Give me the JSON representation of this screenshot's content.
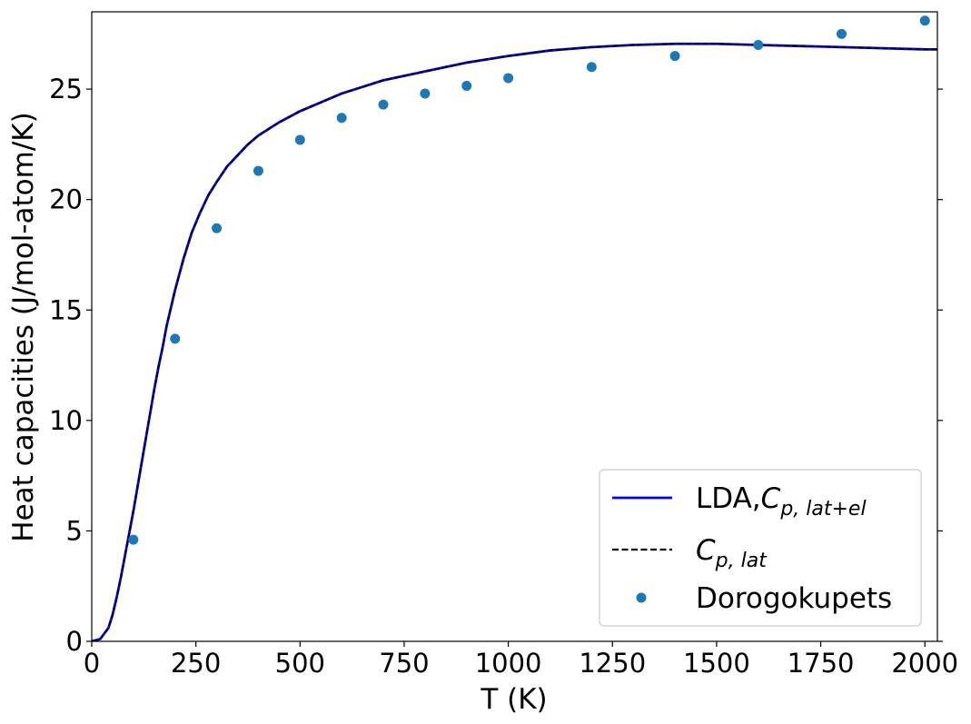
{
  "chart_data": {
    "type": "line",
    "title": "",
    "xlabel": "T (K)",
    "ylabel": "Heat capacities (J/mol-atom/K)",
    "xlim": [
      0,
      2030
    ],
    "ylim": [
      0,
      28.5
    ],
    "xticks": [
      0,
      250,
      500,
      750,
      1000,
      1250,
      1500,
      1750,
      2000
    ],
    "yticks": [
      0,
      5,
      10,
      15,
      20,
      25
    ],
    "grid": false,
    "legend_position": "lower-right",
    "series": [
      {
        "name": "LDA,",
        "name_math": "C",
        "name_sub": "p, lat+el",
        "style": "solid",
        "color": "#0000ff",
        "x": [
          0,
          20,
          40,
          50,
          60,
          70,
          80,
          90,
          100,
          110,
          120,
          130,
          140,
          150,
          160,
          170,
          180,
          190,
          200,
          220,
          240,
          260,
          280,
          300,
          325,
          350,
          375,
          400,
          450,
          500,
          550,
          600,
          650,
          700,
          750,
          800,
          850,
          900,
          950,
          1000,
          1100,
          1200,
          1300,
          1400,
          1500,
          1600,
          1700,
          1800,
          1900,
          2000,
          2030
        ],
        "y": [
          0,
          0.1,
          0.6,
          1.2,
          2.0,
          2.9,
          3.9,
          4.9,
          5.9,
          7.0,
          8.1,
          9.2,
          10.3,
          11.4,
          12.4,
          13.3,
          14.3,
          15.1,
          15.9,
          17.3,
          18.5,
          19.4,
          20.2,
          20.8,
          21.5,
          22.0,
          22.5,
          22.9,
          23.5,
          24.0,
          24.4,
          24.8,
          25.1,
          25.4,
          25.6,
          25.8,
          26.0,
          26.2,
          26.35,
          26.5,
          26.75,
          26.9,
          27.0,
          27.05,
          27.05,
          27.0,
          26.95,
          26.9,
          26.85,
          26.8,
          26.8
        ]
      },
      {
        "name": "",
        "name_math": "C",
        "name_sub": "p, lat",
        "style": "dashed",
        "color": "#000000",
        "x": [
          0,
          20,
          40,
          50,
          60,
          70,
          80,
          90,
          100,
          110,
          120,
          130,
          140,
          150,
          160,
          170,
          180,
          190,
          200,
          220,
          240,
          260,
          280,
          300,
          325,
          350,
          375,
          400,
          450,
          500,
          550,
          600,
          650,
          700,
          750,
          800,
          850,
          900,
          950,
          1000,
          1100,
          1200,
          1300,
          1400,
          1500,
          1600,
          1700,
          1800,
          1900,
          2000,
          2030
        ],
        "y": [
          0,
          0.1,
          0.6,
          1.2,
          2.0,
          2.9,
          3.9,
          4.9,
          5.9,
          7.0,
          8.1,
          9.2,
          10.3,
          11.4,
          12.4,
          13.3,
          14.3,
          15.1,
          15.9,
          17.3,
          18.5,
          19.4,
          20.2,
          20.8,
          21.5,
          22.0,
          22.5,
          22.9,
          23.5,
          24.0,
          24.4,
          24.8,
          25.1,
          25.4,
          25.6,
          25.8,
          26.0,
          26.2,
          26.35,
          26.5,
          26.75,
          26.9,
          27.0,
          27.05,
          27.05,
          27.0,
          26.95,
          26.9,
          26.85,
          26.8,
          26.8
        ]
      },
      {
        "name": "Dorogokupets",
        "style": "scatter",
        "color": "#1f77b4",
        "x": [
          100,
          200,
          300,
          400,
          500,
          600,
          700,
          800,
          900,
          1000,
          1200,
          1400,
          1600,
          1800,
          2000
        ],
        "y": [
          4.6,
          13.7,
          18.7,
          21.3,
          22.7,
          23.7,
          24.3,
          24.8,
          25.15,
          25.5,
          26.0,
          26.5,
          27.0,
          27.5,
          28.1
        ]
      }
    ]
  }
}
